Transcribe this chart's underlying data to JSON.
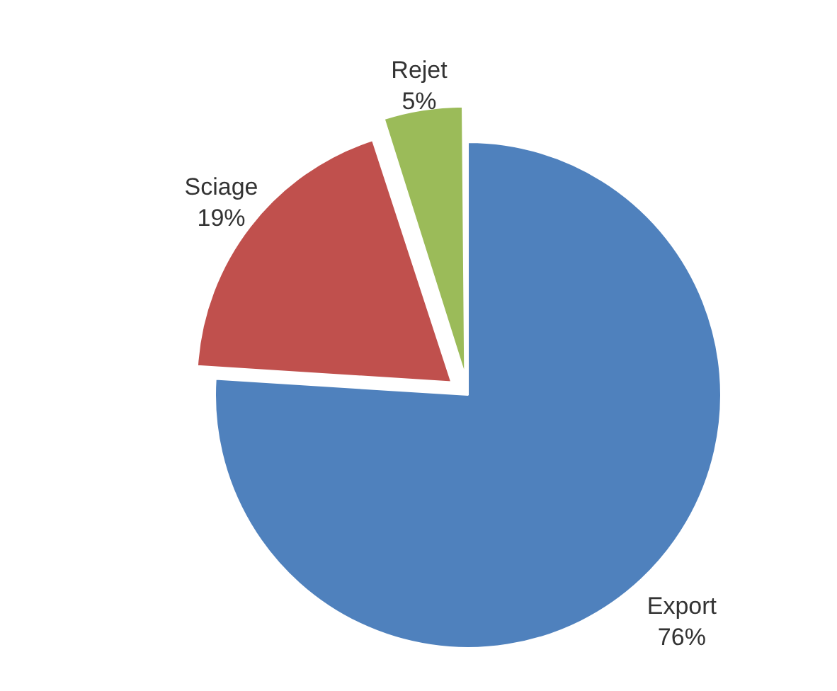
{
  "chart_data": {
    "type": "pie",
    "categories": [
      "Export",
      "Sciage",
      "Rejet"
    ],
    "values": [
      76,
      19,
      5
    ],
    "value_labels": [
      "76%",
      "19%",
      "5%"
    ],
    "colors": [
      "#4f81bd",
      "#c0504d",
      "#9bbb59"
    ],
    "legend": false
  }
}
